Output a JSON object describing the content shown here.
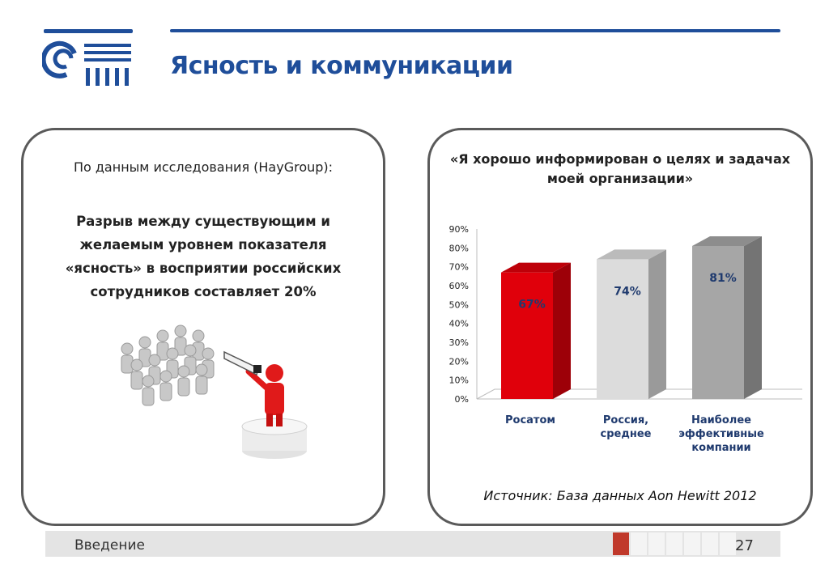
{
  "header": {
    "title": "Ясность и коммуникации",
    "logo_icon": "rosatom-logo-icon",
    "accent_color": "#1f4e9a"
  },
  "left_panel": {
    "caption": "По данным исследования (HayGroup):",
    "statement": "Разрыв между существующим и желаемым уровнем показателя «ясность» в восприятии российских сотрудников составляет 20%",
    "illustration_icon": "leader-with-megaphone-and-crowd-illustration"
  },
  "right_panel": {
    "quote": "«Я хорошо информирован о целях и задачах моей организации»",
    "source": "Источник: База данных Aon Hewitt 2012"
  },
  "chart_data": {
    "type": "bar",
    "categories": [
      "Росатом",
      "Россия, среднее",
      "Наиболее эффективные компании"
    ],
    "category_lines": [
      [
        "Росатом"
      ],
      [
        "Россия,",
        "среднее"
      ],
      [
        "Наиболее",
        "эффективные",
        "компании"
      ]
    ],
    "values": [
      67,
      74,
      81
    ],
    "data_labels": [
      "67%",
      "74%",
      "81%"
    ],
    "ylim": [
      0,
      90
    ],
    "yticks": [
      "0%",
      "10%",
      "20%",
      "30%",
      "40%",
      "50%",
      "60%",
      "70%",
      "80%",
      "90%"
    ],
    "bar_colors": [
      "#e0000b",
      "#dcdcdc",
      "#a6a6a6"
    ],
    "grid": false
  },
  "footer": {
    "section": "Введение",
    "page": "27",
    "progress_total": 7,
    "progress_current": 1,
    "progress_color": "#c0392b"
  }
}
